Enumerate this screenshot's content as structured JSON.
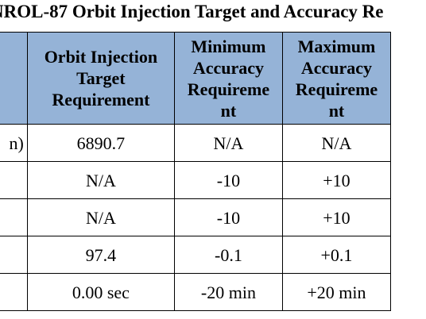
{
  "title": "NROL-87 Orbit Injection Target and Accuracy Re",
  "table": {
    "headers": [
      "",
      "Orbit Injection Target Requirement",
      "Minimum Accuracy Requireme nt",
      "Maximum Accuracy Requireme nt"
    ],
    "header_lines": {
      "target": [
        "Orbit Injection",
        "Target",
        "Requirement"
      ],
      "min": [
        "Minimum",
        "Accuracy",
        "Requireme",
        "nt"
      ],
      "max": [
        "Maximum",
        "Accuracy",
        "Requireme",
        "nt"
      ]
    },
    "rows": [
      {
        "param": "n)",
        "target": "6890.7",
        "min": "N/A",
        "max": "N/A"
      },
      {
        "param": "",
        "target": "N/A",
        "min": "-10",
        "max": "+10"
      },
      {
        "param": "",
        "target": "N/A",
        "min": "-10",
        "max": "+10"
      },
      {
        "param": "",
        "target": "97.4",
        "min": "-0.1",
        "max": "+0.1"
      },
      {
        "param": "",
        "target": "0.00 sec",
        "min": "-20 min",
        "max": "+20 min"
      }
    ]
  },
  "colors": {
    "header_background": "#95b3d7",
    "border": "#000000"
  }
}
